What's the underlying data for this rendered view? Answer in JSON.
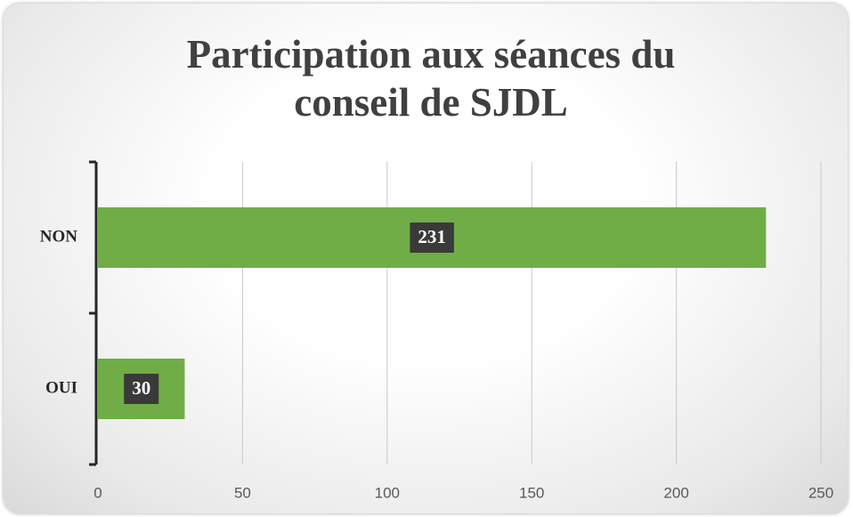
{
  "chart_data": {
    "type": "bar",
    "orientation": "horizontal",
    "title": "Participation aux séances du conseil de SJDL",
    "categories": [
      "NON",
      "OUI"
    ],
    "values": [
      231,
      30
    ],
    "color": "#70ad47",
    "xlim": [
      0,
      250
    ],
    "xticks": [
      0,
      50,
      100,
      150,
      200,
      250
    ],
    "grid": true
  }
}
